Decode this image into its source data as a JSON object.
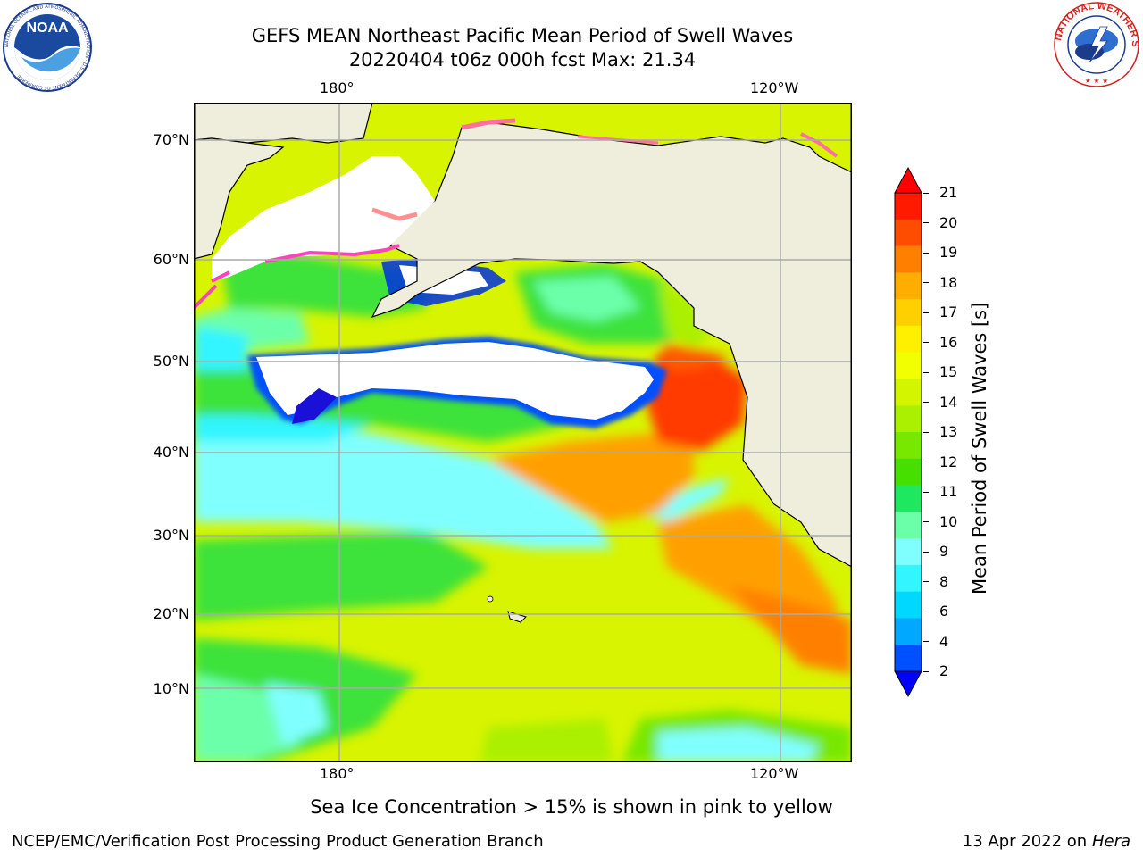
{
  "header": {
    "title_line1": "GEFS MEAN Northeast Pacific Mean Period of Swell Waves",
    "title_line2": "20220404 t06z 000h fcst   Max: 21.34"
  },
  "logos": {
    "left": {
      "text": "NOAA",
      "ring_text": "NATIONAL OCEANIC AND ATMOSPHERIC ADMINISTRATION · U.S. DEPARTMENT OF COMMERCE"
    },
    "right": {
      "ring_text": "NATIONAL WEATHER SERVICE"
    }
  },
  "map": {
    "lon_top": [
      "180°",
      "120°W"
    ],
    "lon_bottom": [
      "180°",
      "120°W"
    ],
    "lat_labels": [
      "70°N",
      "60°N",
      "50°N",
      "40°N",
      "30°N",
      "20°N",
      "10°N"
    ]
  },
  "colorbar": {
    "label": "Mean Period of Swell Waves [s]",
    "ticks": [
      "21",
      "20",
      "19",
      "18",
      "17",
      "16",
      "15",
      "14",
      "13",
      "12",
      "11",
      "10",
      "9",
      "8",
      "6",
      "4",
      "2"
    ],
    "colors": [
      "#ff1a00",
      "#ff4d00",
      "#ff8000",
      "#ffad00",
      "#ffd000",
      "#fff000",
      "#f2ff00",
      "#d4f500",
      "#aaf000",
      "#78e800",
      "#45e000",
      "#1ee860",
      "#6cffaa",
      "#80ffff",
      "#33f5ff",
      "#00d8ff",
      "#00a8ff",
      "#0050ff"
    ],
    "top_arrow_color": "#ff0000",
    "bottom_arrow_color": "#0000ff"
  },
  "note": "Sea Ice Concentration > 15% is shown in pink to yellow",
  "footer": {
    "left": "NCEP/EMC/Verification Post Processing Product Generation Branch",
    "right_prefix": "13 Apr 2022 on ",
    "right_italic": "Hera"
  }
}
